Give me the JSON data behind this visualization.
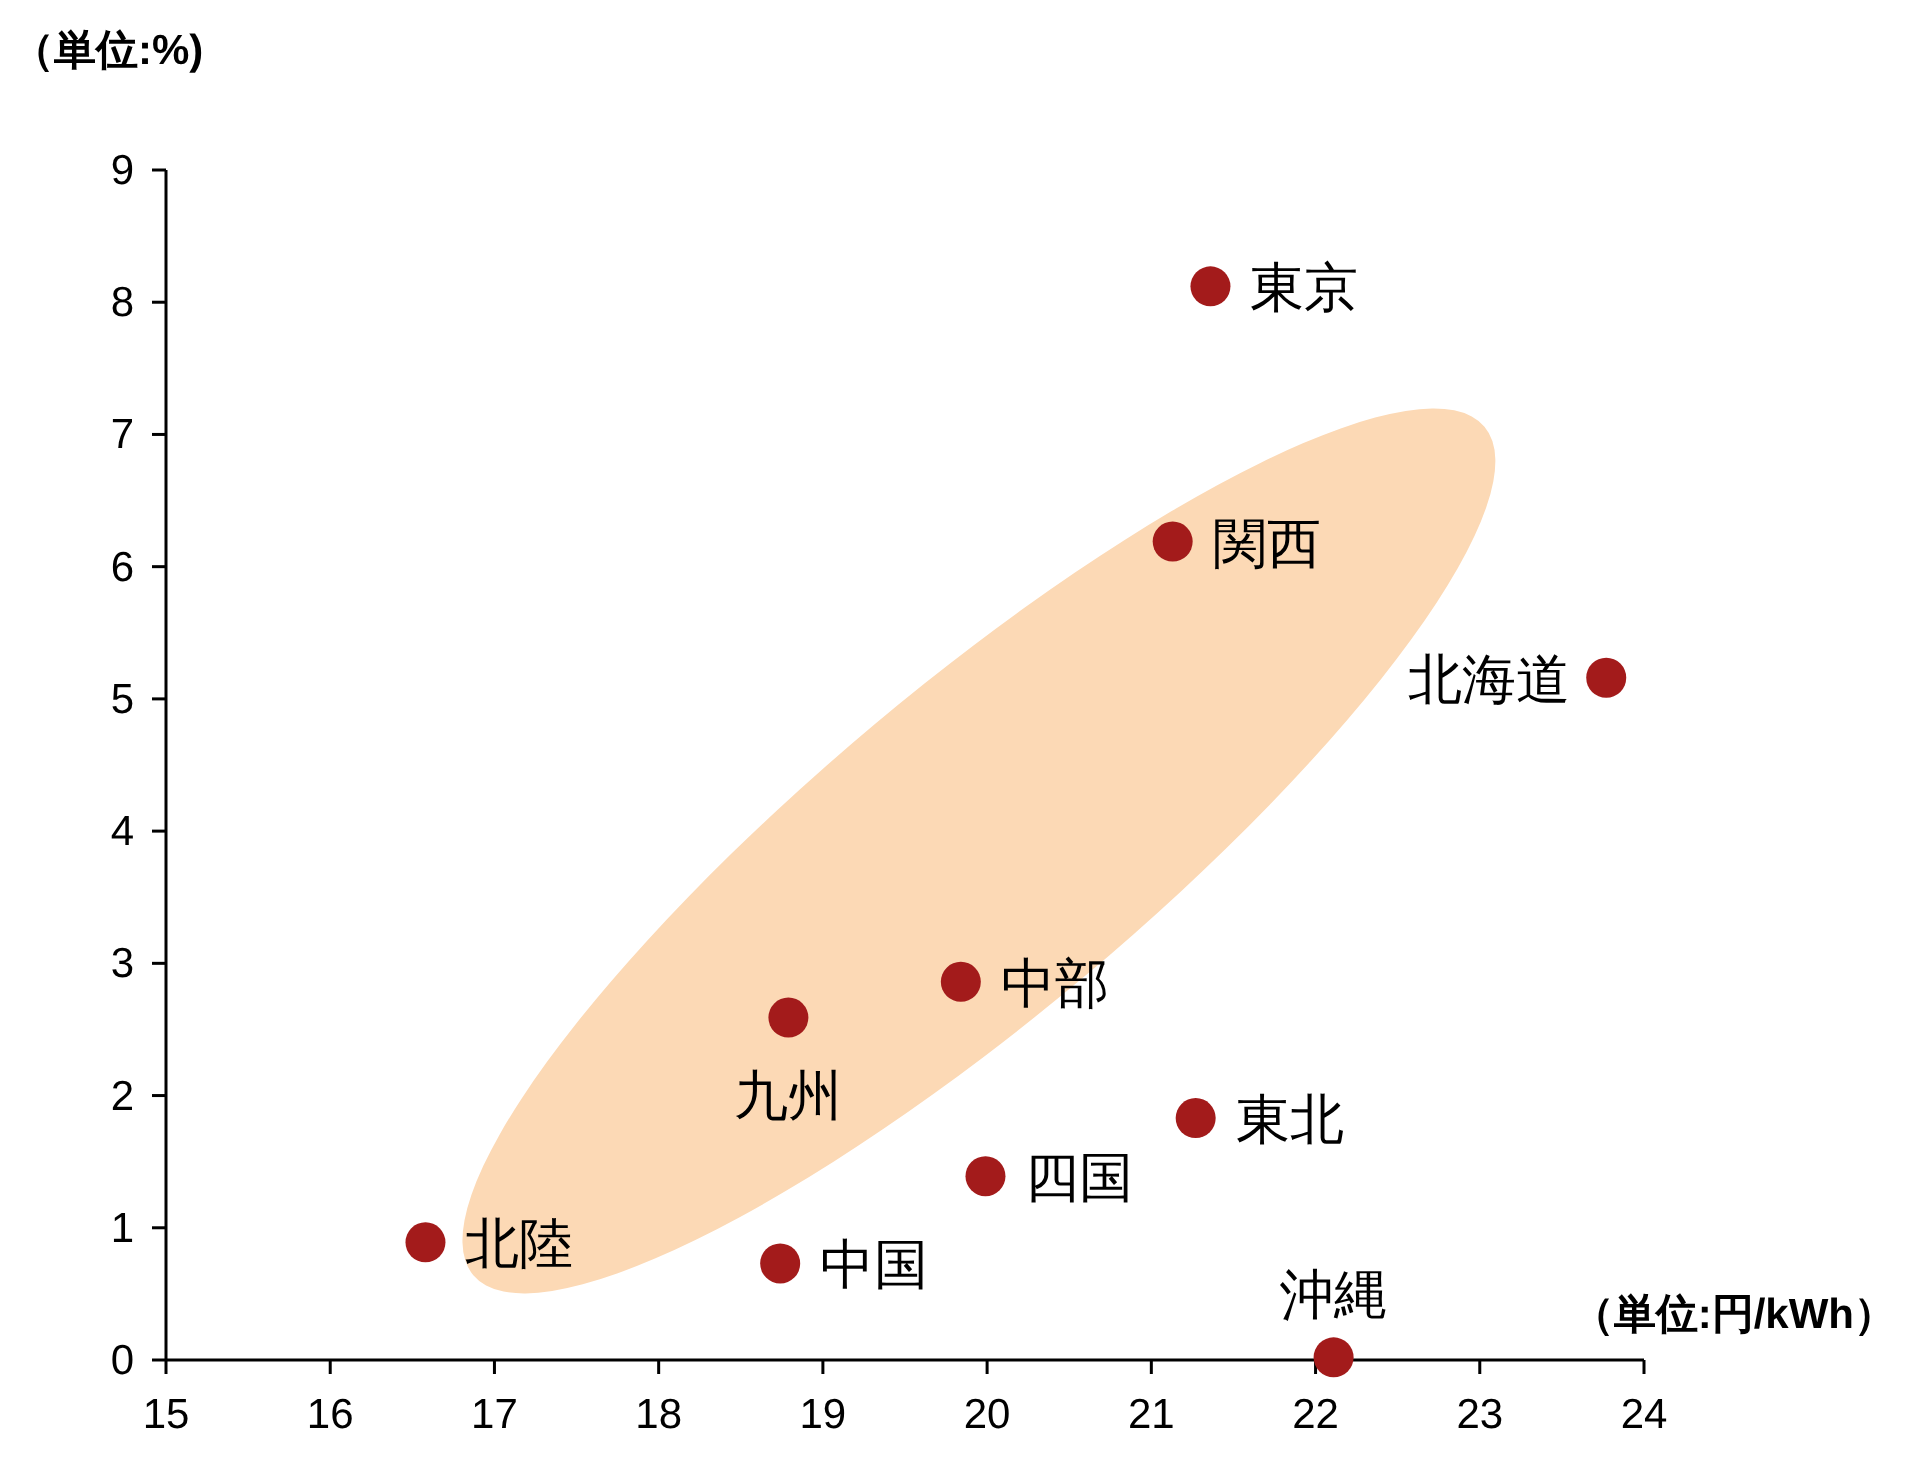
{
  "chart_data": {
    "type": "scatter",
    "xlabel": "（単位:円/kWh）",
    "ylabel": "（単位:%)",
    "xlim": [
      15,
      24
    ],
    "xticks": [
      15,
      16,
      17,
      18,
      19,
      20,
      21,
      22,
      23,
      24
    ],
    "ylim": [
      0,
      9
    ],
    "yticks": [
      0,
      1,
      2,
      3,
      4,
      5,
      6,
      7,
      8,
      9
    ],
    "grid": false,
    "marker": "circle",
    "series": [
      {
        "color": "#a31b1b",
        "x": [
          21.36,
          21.13,
          23.77,
          19.84,
          18.79,
          21.27,
          19.99,
          16.58,
          18.74,
          22.11
        ],
        "values": [
          8.12,
          6.19,
          5.16,
          2.86,
          2.59,
          1.83,
          1.39,
          0.89,
          0.73,
          0.02
        ]
      }
    ],
    "annotations": [
      {
        "text": "東京",
        "x": 21.36,
        "y": 8.12
      },
      {
        "text": "関西",
        "x": 21.13,
        "y": 6.19
      },
      {
        "text": "北海道",
        "x": 23.77,
        "y": 5.16
      },
      {
        "text": "中部",
        "x": 19.84,
        "y": 2.86
      },
      {
        "text": "九州",
        "x": 18.79,
        "y": 2.59
      },
      {
        "text": "東北",
        "x": 21.27,
        "y": 1.83
      },
      {
        "text": "四国",
        "x": 19.99,
        "y": 1.39
      },
      {
        "text": "北陸",
        "x": 16.58,
        "y": 0.89
      },
      {
        "text": "中国",
        "x": 18.74,
        "y": 0.73
      },
      {
        "text": "沖縄",
        "x": 22.11,
        "y": 0.02
      }
    ]
  }
}
